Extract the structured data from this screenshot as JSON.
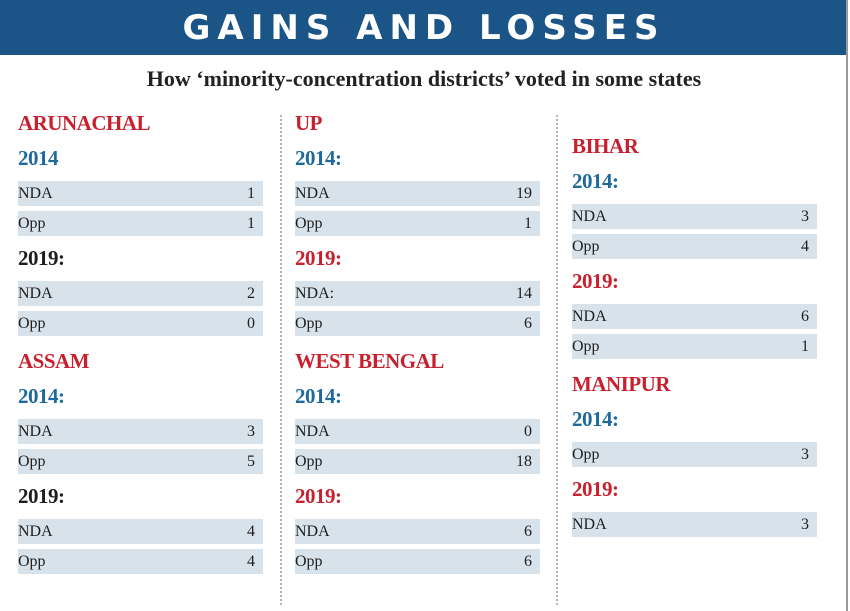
{
  "header": {
    "title": "GAINS AND LOSSES",
    "subtitle": "How ‘minority-concentration districts’ voted in some states"
  },
  "colors": {
    "header_bg": "#1b5486",
    "state": "#c8202e",
    "year_blue": "#1f6a9c",
    "year_red": "#c8202e",
    "year_black": "#1e1e1e",
    "row_bg": "#d8e2eb"
  },
  "chart_data": {
    "type": "table",
    "title": "GAINS AND LOSSES",
    "columns": [
      {
        "states": [
          {
            "name": "ARUNACHAL",
            "years": [
              {
                "label": "2014",
                "color": "#1f6a9c",
                "rows": [
                  {
                    "party": "NDA",
                    "value": 1
                  },
                  {
                    "party": "Opp",
                    "value": 1
                  }
                ]
              },
              {
                "label": "2019:",
                "color": "#1e1e1e",
                "rows": [
                  {
                    "party": "NDA",
                    "value": 2
                  },
                  {
                    "party": "Opp",
                    "value": 0
                  }
                ]
              }
            ]
          },
          {
            "name": "ASSAM",
            "years": [
              {
                "label": "2014:",
                "color": "#1f6a9c",
                "rows": [
                  {
                    "party": "NDA",
                    "value": 3
                  },
                  {
                    "party": "Opp",
                    "value": 5
                  }
                ]
              },
              {
                "label": "2019:",
                "color": "#1e1e1e",
                "rows": [
                  {
                    "party": "NDA",
                    "value": 4
                  },
                  {
                    "party": "Opp",
                    "value": 4
                  }
                ]
              }
            ]
          }
        ]
      },
      {
        "states": [
          {
            "name": "UP",
            "years": [
              {
                "label": "2014:",
                "color": "#1f6a9c",
                "rows": [
                  {
                    "party": "NDA",
                    "value": 19
                  },
                  {
                    "party": "Opp",
                    "value": 1
                  }
                ]
              },
              {
                "label": "2019:",
                "color": "#c8202e",
                "rows": [
                  {
                    "party": "NDA:",
                    "value": 14
                  },
                  {
                    "party": "Opp",
                    "value": 6
                  }
                ]
              }
            ]
          },
          {
            "name": "WEST BENGAL",
            "years": [
              {
                "label": "2014:",
                "color": "#1f6a9c",
                "rows": [
                  {
                    "party": "NDA",
                    "value": 0
                  },
                  {
                    "party": "Opp",
                    "value": 18
                  }
                ]
              },
              {
                "label": "2019:",
                "color": "#c8202e",
                "rows": [
                  {
                    "party": "NDA",
                    "value": 6
                  },
                  {
                    "party": "Opp",
                    "value": 6
                  }
                ]
              }
            ]
          }
        ]
      },
      {
        "states": [
          {
            "name": "BIHAR",
            "years": [
              {
                "label": "2014:",
                "color": "#1f6a9c",
                "rows": [
                  {
                    "party": "NDA",
                    "value": 3
                  },
                  {
                    "party": "Opp",
                    "value": 4
                  }
                ]
              },
              {
                "label": "2019:",
                "color": "#c8202e",
                "rows": [
                  {
                    "party": "NDA",
                    "value": 6
                  },
                  {
                    "party": "Opp",
                    "value": 1
                  }
                ]
              }
            ]
          },
          {
            "name": "MANIPUR",
            "years": [
              {
                "label": "2014:",
                "color": "#1f6a9c",
                "rows": [
                  {
                    "party": "Opp",
                    "value": 3
                  }
                ]
              },
              {
                "label": "2019:",
                "color": "#c8202e",
                "rows": [
                  {
                    "party": "NDA",
                    "value": 3
                  }
                ]
              }
            ]
          }
        ]
      }
    ]
  }
}
